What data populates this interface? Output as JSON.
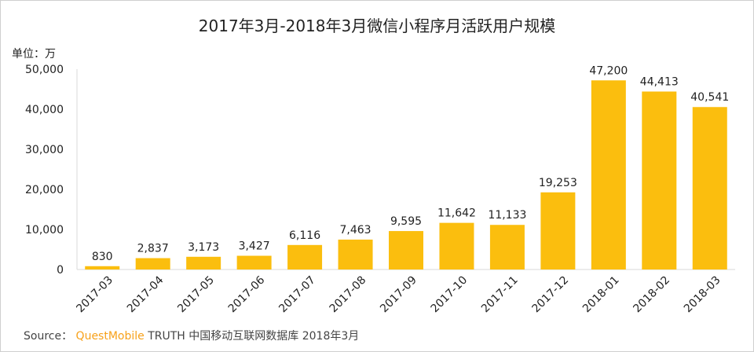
{
  "chart_data": {
    "type": "bar",
    "title": "2017年3月-2018年3月微信小程序月活跃用户规模",
    "unit_label": "单位：万",
    "categories": [
      "2017-03",
      "2017-04",
      "2017-05",
      "2017-06",
      "2017-07",
      "2017-08",
      "2017-09",
      "2017-10",
      "2017-11",
      "2017-12",
      "2018-01",
      "2018-02",
      "2018-03"
    ],
    "values": [
      830,
      2837,
      3173,
      3427,
      6116,
      7463,
      9595,
      11642,
      11133,
      19253,
      47200,
      44413,
      40541
    ],
    "data_labels": [
      "830",
      "2,837",
      "3,173",
      "3,427",
      "6,116",
      "7,463",
      "9,595",
      "11,642",
      "11,133",
      "19,253",
      "47,200",
      "44,413",
      "40,541"
    ],
    "ylim": [
      0,
      50000
    ],
    "yticks": [
      0,
      10000,
      20000,
      30000,
      40000,
      50000
    ],
    "ytick_labels": [
      "0",
      "10,000",
      "20,000",
      "30,000",
      "40,000",
      "50,000"
    ],
    "grid": false,
    "bar_color": "#FBBE0E"
  },
  "source": {
    "prefix": "Source：",
    "brand": "QuestMobile",
    "text": "TRUTH 中国移动互联网数据库 2018年3月",
    "brand_color": "#F7A11A"
  }
}
